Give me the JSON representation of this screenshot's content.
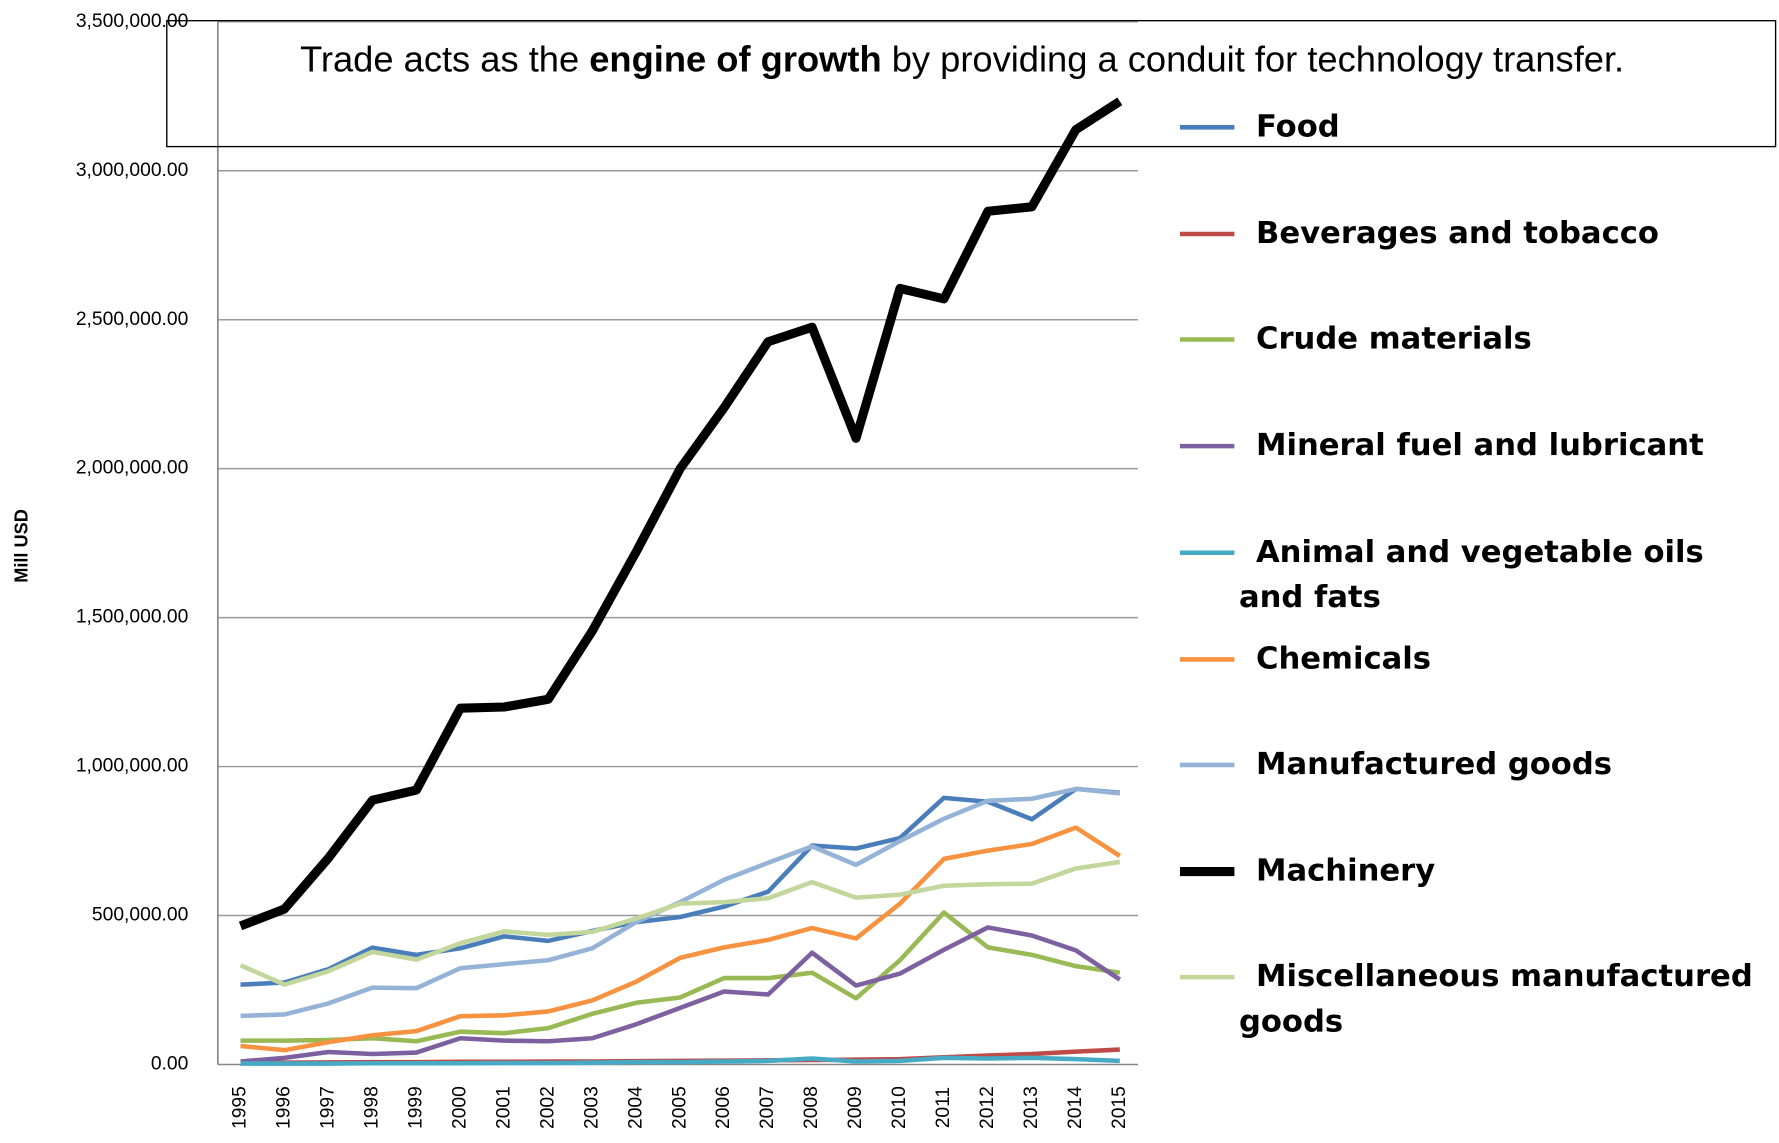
{
  "chart_data": {
    "type": "line",
    "annotation": {
      "before": "Trade acts as the ",
      "bold": "engine of growth",
      "after": " by providing a conduit for technology transfer."
    },
    "y_label": "Mill USD",
    "categories": [
      "1995",
      "1996",
      "1997",
      "1998",
      "1999",
      "2000",
      "2001",
      "2002",
      "2003",
      "2004",
      "2005",
      "2006",
      "2007",
      "2008",
      "2009",
      "2010",
      "2011",
      "2012",
      "2013",
      "2014",
      "2015"
    ],
    "ylim": [
      0,
      3500000
    ],
    "yticks": [
      {
        "value": 0,
        "label": "0.00"
      },
      {
        "value": 500000,
        "label": "500,000.00"
      },
      {
        "value": 1000000,
        "label": "1,000,000.00"
      },
      {
        "value": 1500000,
        "label": "1,500,000.00"
      },
      {
        "value": 2000000,
        "label": "2,000,000.00"
      },
      {
        "value": 2500000,
        "label": "2,500,000.00"
      },
      {
        "value": 3000000,
        "label": "3,000,000.00"
      },
      {
        "value": 3500000,
        "label": "3,500,000.00"
      }
    ],
    "grid": true,
    "legend": "right",
    "series": [
      {
        "name": "Food",
        "color": "#4a7ebb",
        "values": [
          268000,
          275000,
          320000,
          392000,
          368000,
          390000,
          430000,
          415000,
          448000,
          478000,
          495000,
          530000,
          580000,
          735000,
          725000,
          760000,
          895000,
          882000,
          823000,
          925000,
          912000
        ]
      },
      {
        "name": "Beverages and tobacco",
        "color": "#be4b48",
        "values": [
          5000,
          6000,
          7000,
          8000,
          8000,
          9000,
          9000,
          10000,
          10000,
          11000,
          12000,
          13000,
          14000,
          15000,
          16000,
          18000,
          24000,
          30000,
          35000,
          43000,
          50000
        ]
      },
      {
        "name": "Crude materials",
        "color": "#98b954",
        "values": [
          80000,
          80000,
          82000,
          88000,
          78000,
          110000,
          105000,
          122000,
          170000,
          207000,
          225000,
          290000,
          290000,
          308000,
          222000,
          350000,
          510000,
          393000,
          368000,
          330000,
          308000
        ]
      },
      {
        "name": "Mineral fuel and lubricant",
        "color": "#7d60a0",
        "values": [
          10000,
          22000,
          42000,
          35000,
          40000,
          88000,
          80000,
          78000,
          88000,
          135000,
          190000,
          245000,
          235000,
          375000,
          265000,
          305000,
          385000,
          460000,
          433000,
          383000,
          285000
        ]
      },
      {
        "name": "Animal and vegetable oils and fats",
        "color": "#46aac5",
        "values": [
          3000,
          3000,
          3000,
          4000,
          4000,
          4000,
          5000,
          5000,
          6000,
          8000,
          8000,
          10000,
          12000,
          20000,
          10000,
          12000,
          22000,
          20000,
          22000,
          18000,
          12000
        ]
      },
      {
        "name": "Chemicals",
        "color": "#f69240",
        "values": [
          62000,
          48000,
          75000,
          98000,
          112000,
          162000,
          165000,
          178000,
          215000,
          278000,
          358000,
          393000,
          418000,
          458000,
          423000,
          540000,
          690000,
          718000,
          740000,
          795000,
          700000
        ]
      },
      {
        "name": "Manufactured goods",
        "color": "#95b3d7",
        "values": [
          163000,
          168000,
          205000,
          258000,
          256000,
          323000,
          337000,
          350000,
          390000,
          478000,
          545000,
          620000,
          677000,
          732000,
          670000,
          750000,
          825000,
          885000,
          892000,
          925000,
          910000
        ]
      },
      {
        "name": "Machinery",
        "color": "#000000",
        "values": [
          465000,
          522000,
          693000,
          887000,
          921000,
          1196000,
          1200000,
          1226000,
          1455000,
          1721000,
          2000000,
          2205000,
          2426000,
          2475000,
          2102000,
          2605000,
          2570000,
          2864000,
          2879000,
          3138000,
          3233000
        ]
      },
      {
        "name": "Miscellaneous manufactured goods",
        "color": "#c3d69b",
        "values": [
          333000,
          268000,
          313000,
          378000,
          352000,
          407000,
          447000,
          435000,
          445000,
          490000,
          540000,
          545000,
          558000,
          612000,
          560000,
          570000,
          600000,
          605000,
          607000,
          658000,
          680000
        ]
      }
    ]
  }
}
